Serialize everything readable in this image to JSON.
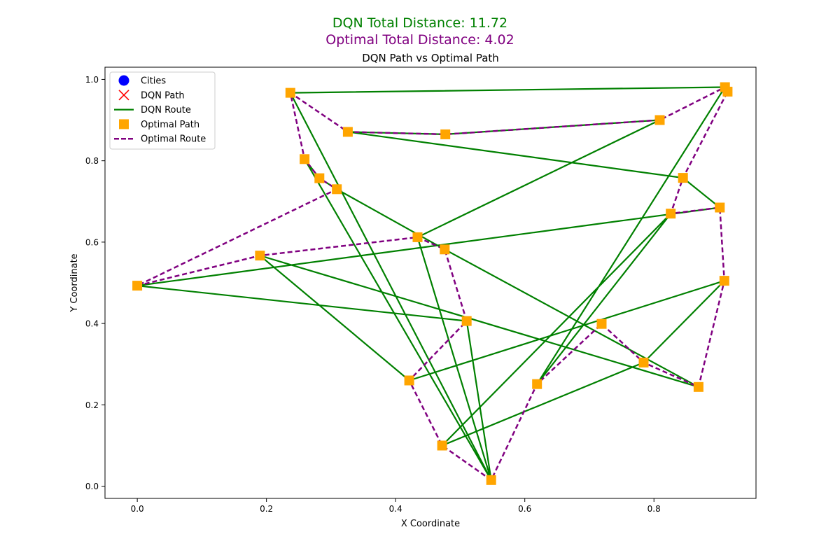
{
  "suptitle": {
    "dqn": "DQN Total Distance: 11.72",
    "optimal": "Optimal Total Distance: 4.02"
  },
  "colors": {
    "dqn_title": "#008000",
    "optimal_title": "#800080",
    "cities": "#0000ff",
    "dqn_path": "#ff0000",
    "dqn_route": "#008000",
    "optimal_path": "#ffa500",
    "optimal_route": "#800080"
  },
  "chart_data": {
    "type": "scatter",
    "title": "DQN Path vs Optimal Path",
    "xlabel": "X Coordinate",
    "ylabel": "Y Coordinate",
    "xlim": [
      -0.05,
      0.958
    ],
    "ylim": [
      -0.03,
      1.03
    ],
    "xticks": [
      "0.0",
      "0.2",
      "0.4",
      "0.6",
      "0.8"
    ],
    "xtick_values": [
      0.0,
      0.2,
      0.4,
      0.6,
      0.8
    ],
    "yticks": [
      "0.0",
      "0.2",
      "0.4",
      "0.6",
      "0.8",
      "1.0"
    ],
    "ytick_values": [
      0.0,
      0.2,
      0.4,
      0.6,
      0.8,
      1.0
    ],
    "grid": false,
    "legend_position": "upper-left",
    "legend": [
      {
        "label": "Cities",
        "marker": "circle",
        "color": "#0000ff"
      },
      {
        "label": "DQN Path",
        "marker": "x",
        "color": "#ff0000"
      },
      {
        "label": "DQN Route",
        "marker": "line",
        "color": "#008000"
      },
      {
        "label": "Optimal Path",
        "marker": "square",
        "color": "#ffa500"
      },
      {
        "label": "Optimal Route",
        "marker": "dashed",
        "color": "#800080"
      }
    ],
    "cities": [
      [
        0.0,
        0.493
      ],
      [
        0.19,
        0.567
      ],
      [
        0.237,
        0.967
      ],
      [
        0.259,
        0.804
      ],
      [
        0.282,
        0.757
      ],
      [
        0.309,
        0.73
      ],
      [
        0.326,
        0.871
      ],
      [
        0.421,
        0.26
      ],
      [
        0.434,
        0.612
      ],
      [
        0.472,
        0.1
      ],
      [
        0.476,
        0.582
      ],
      [
        0.477,
        0.865
      ],
      [
        0.51,
        0.406
      ],
      [
        0.548,
        0.015
      ],
      [
        0.619,
        0.251
      ],
      [
        0.719,
        0.399
      ],
      [
        0.784,
        0.304
      ],
      [
        0.809,
        0.9
      ],
      [
        0.826,
        0.67
      ],
      [
        0.845,
        0.758
      ],
      [
        0.869,
        0.244
      ],
      [
        0.902,
        0.685
      ],
      [
        0.909,
        0.505
      ],
      [
        0.91,
        0.981
      ],
      [
        0.914,
        0.97
      ]
    ],
    "dqn_route": [
      0,
      12,
      13,
      3,
      4,
      5,
      10,
      20,
      1,
      7,
      22,
      16,
      9,
      18,
      14,
      23,
      2,
      13,
      8,
      17,
      11,
      6,
      19,
      21,
      0
    ],
    "optimal_route": [
      0,
      1,
      8,
      10,
      12,
      7,
      9,
      13,
      14,
      15,
      16,
      20,
      22,
      21,
      18,
      19,
      24,
      23,
      17,
      11,
      6,
      2,
      3,
      4,
      5,
      0
    ]
  }
}
